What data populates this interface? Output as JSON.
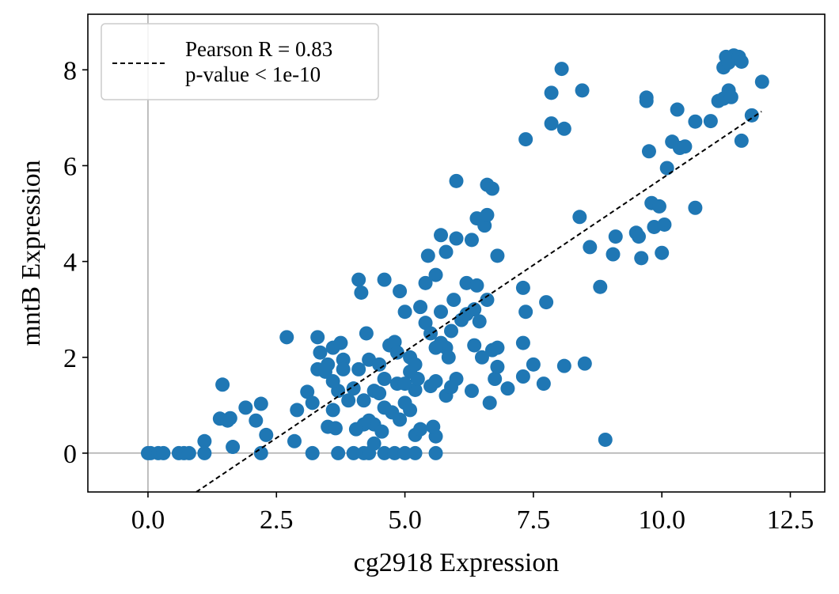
{
  "chart_data": {
    "type": "scatter",
    "xlabel": "cg2918 Expression",
    "ylabel": "mntB Expression",
    "xlim": [
      -1.17,
      13.17
    ],
    "ylim": [
      -0.81,
      9.16
    ],
    "xticks": [
      {
        "value": 0,
        "label": "0.0"
      },
      2.5,
      {
        "value": 5,
        "label": "5.0"
      },
      7.5,
      {
        "value": 10,
        "label": "10.0"
      },
      12.5
    ],
    "yticks": [
      0,
      2,
      4,
      6,
      8
    ],
    "zero_lines": true,
    "color": "#1f77b4",
    "x": [
      0.0,
      0.05,
      0.2,
      0.3,
      0.6,
      0.7,
      0.8,
      1.1,
      2.2,
      3.2,
      3.7,
      4.0,
      4.2,
      4.3,
      4.6,
      4.8,
      5.0,
      5.2,
      5.6,
      1.1,
      1.45,
      1.4,
      1.55,
      1.6,
      1.65,
      1.9,
      2.1,
      2.3,
      2.2,
      2.7,
      2.85,
      2.9,
      3.1,
      3.2,
      3.3,
      3.3,
      3.35,
      3.5,
      3.6,
      3.5,
      3.6,
      3.7,
      3.75,
      3.8,
      3.8,
      3.65,
      3.9,
      4.0,
      4.1,
      4.1,
      4.15,
      4.2,
      4.25,
      4.3,
      4.3,
      4.4,
      4.4,
      4.5,
      4.6,
      4.6,
      4.7,
      4.8,
      4.85,
      4.9,
      5.0,
      4.9,
      5.0,
      5.1,
      5.1,
      5.2,
      5.2,
      5.3,
      5.4,
      5.4,
      5.45,
      5.5,
      5.6,
      5.6,
      5.6,
      5.7,
      5.7,
      5.8,
      5.8,
      5.8,
      5.9,
      5.95,
      5.9,
      6.0,
      6.0,
      6.0,
      6.1,
      6.2,
      6.2,
      6.3,
      6.3,
      6.35,
      6.35,
      6.4,
      6.4,
      6.45,
      6.5,
      6.55,
      6.6,
      6.6,
      6.6,
      6.65,
      6.7,
      6.7,
      6.75,
      6.8,
      6.8,
      6.8,
      7.0,
      7.3,
      7.3,
      7.3,
      7.35,
      7.35,
      7.5,
      7.7,
      7.75,
      7.85,
      7.85,
      8.05,
      8.1,
      8.1,
      8.4,
      8.45,
      8.5,
      8.6,
      8.8,
      8.9,
      9.05,
      9.1,
      9.5,
      9.55,
      9.6,
      9.7,
      9.7,
      9.75,
      9.8,
      9.85,
      9.95,
      10.0,
      10.05,
      10.1,
      10.2,
      10.3,
      10.35,
      10.45,
      10.65,
      10.65,
      10.95,
      11.1,
      11.2,
      11.2,
      11.25,
      11.3,
      11.35,
      11.3,
      11.4,
      11.5,
      11.55,
      11.55,
      11.75,
      11.95,
      5.3,
      5.55,
      4.2,
      4.4,
      3.6,
      4.6,
      5.0,
      5.5,
      5.7,
      5.2,
      4.5,
      4.05,
      3.45,
      4.55,
      4.75,
      5.1,
      5.25,
      5.85,
      5.6,
      4.85
    ],
    "y": [
      0,
      0,
      0,
      0,
      0,
      0,
      0,
      0.25,
      0,
      0,
      0,
      0,
      0,
      0,
      0,
      0,
      0,
      0,
      0,
      0,
      1.43,
      0.72,
      0.68,
      0.73,
      0.13,
      0.95,
      0.68,
      0.38,
      1.03,
      2.42,
      0.25,
      0.9,
      1.28,
      1.05,
      1.75,
      2.42,
      2.1,
      1.85,
      2.2,
      0.55,
      0.9,
      1.3,
      2.3,
      1.95,
      1.75,
      0.52,
      1.1,
      1.35,
      1.75,
      3.62,
      3.35,
      1.1,
      2.5,
      0.68,
      1.95,
      0.6,
      1.3,
      1.85,
      3.62,
      0.95,
      2.25,
      2.32,
      1.45,
      0.7,
      1.05,
      3.38,
      2.95,
      2.0,
      1.7,
      1.32,
      0.38,
      3.05,
      3.55,
      2.72,
      4.12,
      1.4,
      1.5,
      0.35,
      3.72,
      2.95,
      4.55,
      2.2,
      1.2,
      4.2,
      2.55,
      3.2,
      1.38,
      4.48,
      5.68,
      1.55,
      2.78,
      3.55,
      2.9,
      1.3,
      4.45,
      2.25,
      3.0,
      4.9,
      3.5,
      2.75,
      2.0,
      4.75,
      3.2,
      5.6,
      4.97,
      1.05,
      2.15,
      5.52,
      1.55,
      4.12,
      2.2,
      1.8,
      1.35,
      3.45,
      2.3,
      1.6,
      2.95,
      6.55,
      1.85,
      1.45,
      3.15,
      7.52,
      6.88,
      8.02,
      6.77,
      1.82,
      4.93,
      7.57,
      1.87,
      4.3,
      3.47,
      0.28,
      4.15,
      4.52,
      4.6,
      4.52,
      4.07,
      7.42,
      7.35,
      6.3,
      5.22,
      4.72,
      5.15,
      4.18,
      4.77,
      5.95,
      6.5,
      7.17,
      6.37,
      6.4,
      6.92,
      5.12,
      6.93,
      7.35,
      7.4,
      8.05,
      8.27,
      7.57,
      7.43,
      8.15,
      8.3,
      8.27,
      6.52,
      8.17,
      7.05,
      7.75,
      0.5,
      0.55,
      0.6,
      0.2,
      1.5,
      1.55,
      1.45,
      2.5,
      2.3,
      1.85,
      1.25,
      0.5,
      1.7,
      0.45,
      0.85,
      0.9,
      1.55,
      2.0,
      2.2,
      2.1
    ],
    "fit_line": {
      "x": [
        0.94,
        11.94
      ],
      "y": [
        -0.81,
        7.13
      ],
      "color": "#000000",
      "dashed": true,
      "label": [
        "Pearson R = 0.83",
        "p-value < 1e-10"
      ]
    },
    "legend": "upper left"
  }
}
